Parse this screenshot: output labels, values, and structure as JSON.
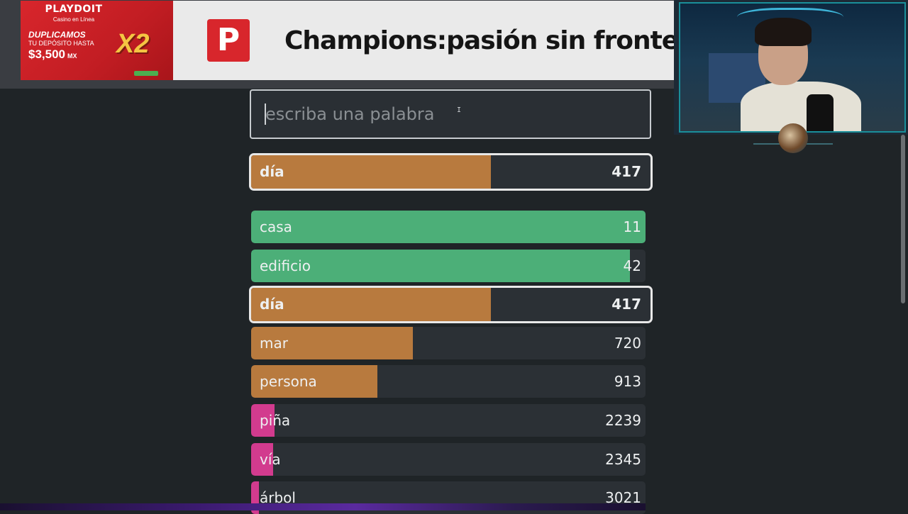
{
  "ad": {
    "brand": "PLAYDOIT",
    "brand_sub": "Casino en Línea",
    "promo": "DUPLICAMOS",
    "promo_line": "TU DEPÓSITO HASTA",
    "amount": "$3,500",
    "currency": "MX",
    "multiplier": "X2",
    "logo_letter": "P",
    "title": "Champions:pasión sin fronteras"
  },
  "search": {
    "placeholder": "escriba una palabra",
    "value": ""
  },
  "current_guess": {
    "word": "día",
    "rank": "417",
    "fill_fraction": 0.6,
    "color": "#b87a3e"
  },
  "guesses": [
    {
      "word": "casa",
      "rank": "11",
      "fill_fraction": 1.0,
      "color": "#4caf78"
    },
    {
      "word": "edificio",
      "rank": "42",
      "fill_fraction": 0.96,
      "color": "#4caf78"
    },
    {
      "word": "día",
      "rank": "417",
      "fill_fraction": 0.6,
      "color": "#b87a3e",
      "current": true
    },
    {
      "word": "mar",
      "rank": "720",
      "fill_fraction": 0.41,
      "color": "#b87a3e"
    },
    {
      "word": "persona",
      "rank": "913",
      "fill_fraction": 0.32,
      "color": "#b87a3e"
    },
    {
      "word": "piña",
      "rank": "2239",
      "fill_fraction": 0.06,
      "color": "#d23b8e"
    },
    {
      "word": "vía",
      "rank": "2345",
      "fill_fraction": 0.055,
      "color": "#d23b8e"
    },
    {
      "word": "árbol",
      "rank": "3021",
      "fill_fraction": 0.02,
      "color": "#d23b8e"
    }
  ]
}
